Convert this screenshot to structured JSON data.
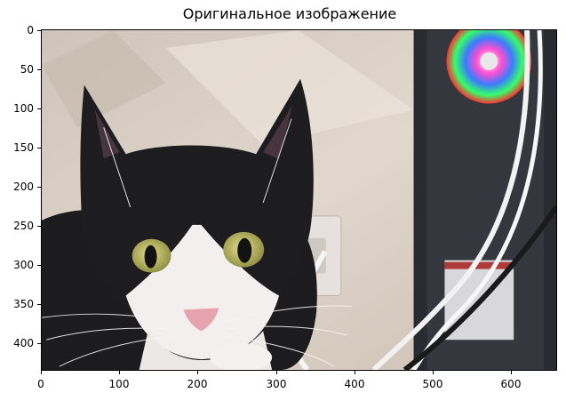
{
  "title": "Оригинальное изображение",
  "x_ticks": [
    "0",
    "100",
    "200",
    "300",
    "400",
    "500",
    "600"
  ],
  "y_ticks": [
    "0",
    "50",
    "100",
    "150",
    "200",
    "250",
    "300",
    "350",
    "400"
  ],
  "image": {
    "subject": "black-and-white tuxedo cat with yellow-green eyes, pink nose, next to a PC case with RGB fan and a white cable",
    "colors": {
      "wall": "#d9cfc4",
      "fur_black": "#1c1b1d",
      "fur_white": "#f2efee",
      "eyes": "#c6c16a",
      "nose": "#e8a3b0",
      "pc_case": "#2a2b30"
    }
  }
}
